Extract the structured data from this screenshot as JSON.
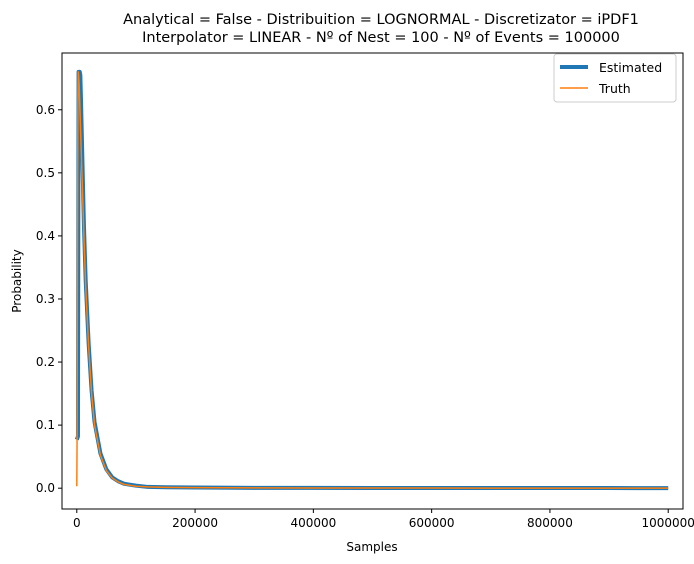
{
  "chart_data": {
    "type": "line",
    "title_lines": [
      "Analytical = False - Distribuition = LOGNORMAL - Discretizator = iPDF1",
      "Interpolator = LINEAR - Nº of Nest = 100 - Nº of Events = 100000"
    ],
    "xlabel": "Samples",
    "ylabel": "Probability",
    "xlim": [
      -25000,
      1025000
    ],
    "ylim": [
      -0.033,
      0.69
    ],
    "xticks": [
      0,
      200000,
      400000,
      600000,
      800000,
      1000000
    ],
    "xtick_labels": [
      "0",
      "200000",
      "400000",
      "600000",
      "800000",
      "1000000"
    ],
    "yticks": [
      0.0,
      0.1,
      0.2,
      0.3,
      0.4,
      0.5,
      0.6
    ],
    "ytick_labels": [
      "0.0",
      "0.1",
      "0.2",
      "0.3",
      "0.4",
      "0.5",
      "0.6"
    ],
    "legend": {
      "position": "top-right",
      "entries": [
        "Estimated",
        "Truth"
      ]
    },
    "series": [
      {
        "name": "Estimated",
        "color": "#1f77b4",
        "x": [
          0,
          2000,
          3000,
          4000,
          5000,
          6000,
          7000,
          8000,
          10000,
          12000,
          15000,
          20000,
          25000,
          30000,
          40000,
          50000,
          60000,
          70000,
          80000,
          100000,
          120000,
          150000,
          200000,
          300000,
          400000,
          500000,
          600000,
          700000,
          800000,
          900000,
          1000000
        ],
        "y": [
          0.077,
          0.082,
          0.66,
          0.66,
          0.66,
          0.655,
          0.62,
          0.58,
          0.5,
          0.42,
          0.33,
          0.23,
          0.155,
          0.105,
          0.055,
          0.03,
          0.017,
          0.011,
          0.007,
          0.004,
          0.002,
          0.0015,
          0.001,
          0.0005,
          0.0004,
          0.0003,
          0.0003,
          0.0002,
          0.0002,
          0.0002,
          0.0001
        ]
      },
      {
        "name": "Truth",
        "color": "#ff7f0e",
        "x": [
          0,
          500,
          1000,
          1500,
          2000,
          2500,
          3000,
          4000,
          5000,
          6000,
          7000,
          8000,
          10000,
          12000,
          15000,
          20000,
          25000,
          30000,
          40000,
          50000,
          60000,
          70000,
          80000,
          100000,
          120000,
          150000,
          200000,
          300000,
          400000,
          500000,
          600000,
          700000,
          800000,
          900000,
          1000000
        ],
        "y": [
          0.003,
          0.08,
          0.3,
          0.5,
          0.62,
          0.66,
          0.655,
          0.64,
          0.61,
          0.58,
          0.55,
          0.52,
          0.46,
          0.4,
          0.32,
          0.225,
          0.15,
          0.1,
          0.052,
          0.028,
          0.016,
          0.01,
          0.006,
          0.003,
          0.002,
          0.0013,
          0.0008,
          0.0004,
          0.0003,
          0.0002,
          0.0002,
          0.0001,
          0.0001,
          0.0001,
          0.0001
        ]
      }
    ]
  }
}
